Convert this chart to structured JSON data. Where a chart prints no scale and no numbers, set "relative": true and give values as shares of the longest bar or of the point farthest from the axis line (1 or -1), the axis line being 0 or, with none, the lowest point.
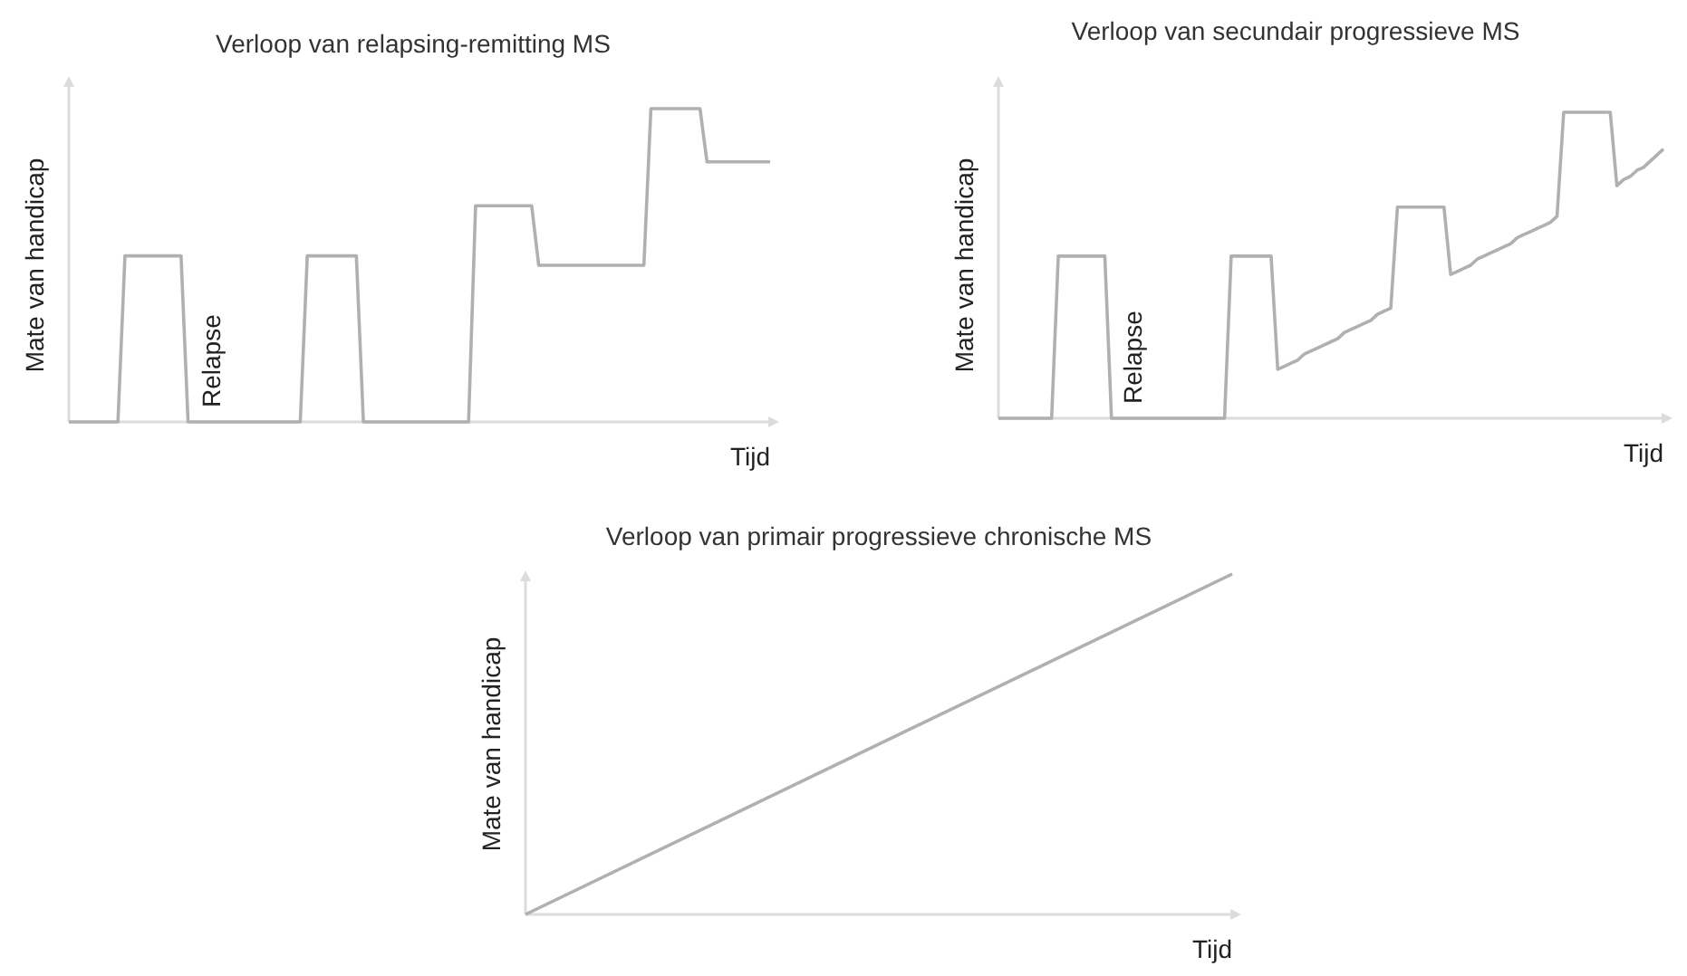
{
  "chart_data": [
    {
      "type": "line",
      "title": "Verloop van relapsing-remitting MS",
      "xlabel": "Tijd",
      "ylabel": "Mate van handicap",
      "relative": true,
      "color": "#b0b0b0",
      "annotations": [
        "Relapse"
      ],
      "categories": [
        null,
        null,
        null,
        null,
        null,
        null,
        null,
        null,
        null,
        null,
        null,
        null,
        null,
        null,
        null,
        null,
        null,
        null,
        null,
        null,
        null,
        null,
        null,
        null,
        null,
        null,
        null,
        null,
        null,
        null,
        null,
        null,
        null,
        null,
        null,
        null,
        null,
        null,
        null,
        null,
        null,
        null,
        null,
        null,
        null,
        null,
        null,
        null,
        null,
        null,
        null,
        null,
        null,
        null,
        null,
        null,
        null,
        null,
        null,
        null,
        null,
        null,
        null,
        null,
        null,
        null,
        null,
        null,
        null,
        null,
        null,
        null,
        null,
        null,
        null,
        null,
        null,
        null,
        null,
        null,
        null,
        null,
        null,
        null,
        null,
        null,
        null,
        null,
        null,
        null,
        null,
        null,
        null,
        null,
        null,
        null,
        null,
        null,
        null,
        null,
        null
      ],
      "values": [
        0,
        0,
        0,
        0,
        0,
        0,
        0,
        0,
        0.53,
        0.53,
        0.53,
        0.53,
        0.53,
        0.53,
        0.53,
        0.53,
        0.53,
        0,
        0,
        0,
        0,
        0,
        0,
        0,
        0,
        0,
        0,
        0,
        0,
        0,
        0,
        0,
        0,
        0,
        0.53,
        0.53,
        0.53,
        0.53,
        0.53,
        0.53,
        0.53,
        0.53,
        0,
        0,
        0,
        0,
        0,
        0,
        0,
        0,
        0,
        0,
        0,
        0,
        0,
        0,
        0,
        0,
        0.69,
        0.69,
        0.69,
        0.69,
        0.69,
        0.69,
        0.69,
        0.69,
        0.69,
        0.5,
        0.5,
        0.5,
        0.5,
        0.5,
        0.5,
        0.5,
        0.5,
        0.5,
        0.5,
        0.5,
        0.5,
        0.5,
        0.5,
        0.5,
        0.5,
        1,
        1,
        1,
        1,
        1,
        1,
        1,
        1,
        0.83,
        0.83,
        0.83,
        0.83,
        0.83,
        0.83,
        0.83,
        0.83,
        0.83,
        0.83
      ]
    },
    {
      "type": "line",
      "title": "Verloop van secundair progressieve MS",
      "xlabel": "Tijd",
      "ylabel": "Mate van handicap",
      "relative": true,
      "color": "#b0b0b0",
      "annotations": [
        "Relapse"
      ],
      "categories": [
        null,
        null,
        null,
        null,
        null,
        null,
        null,
        null,
        null,
        null,
        null,
        null,
        null,
        null,
        null,
        null,
        null,
        null,
        null,
        null,
        null,
        null,
        null,
        null,
        null,
        null,
        null,
        null,
        null,
        null,
        null,
        null,
        null,
        null,
        null,
        null,
        null,
        null,
        null,
        null,
        null,
        null,
        null,
        null,
        null,
        null,
        null,
        null,
        null,
        null,
        null,
        null,
        null,
        null,
        null,
        null,
        null,
        null,
        null,
        null,
        null,
        null,
        null,
        null,
        null,
        null,
        null,
        null,
        null,
        null,
        null,
        null,
        null,
        null,
        null,
        null,
        null,
        null,
        null,
        null,
        null,
        null,
        null,
        null,
        null,
        null,
        null,
        null,
        null,
        null,
        null,
        null,
        null,
        null,
        null,
        null,
        null,
        null,
        null,
        null,
        null
      ],
      "values": [
        0,
        0,
        0,
        0,
        0,
        0,
        0,
        0,
        0,
        0.53,
        0.53,
        0.53,
        0.53,
        0.53,
        0.53,
        0.53,
        0.53,
        0,
        0,
        0,
        0,
        0,
        0,
        0,
        0,
        0,
        0,
        0,
        0,
        0,
        0,
        0,
        0,
        0,
        0,
        0.53,
        0.53,
        0.53,
        0.53,
        0.53,
        0.53,
        0.53,
        0.16,
        0.17,
        0.18,
        0.19,
        0.21,
        0.22,
        0.23,
        0.24,
        0.25,
        0.26,
        0.28,
        0.29,
        0.3,
        0.31,
        0.32,
        0.34,
        0.35,
        0.36,
        0.69,
        0.69,
        0.69,
        0.69,
        0.69,
        0.69,
        0.69,
        0.69,
        0.47,
        0.48,
        0.49,
        0.5,
        0.52,
        0.53,
        0.54,
        0.55,
        0.56,
        0.57,
        0.59,
        0.6,
        0.61,
        0.62,
        0.63,
        0.64,
        0.66,
        1,
        1,
        1,
        1,
        1,
        1,
        1,
        1,
        0.76,
        0.78,
        0.79,
        0.81,
        0.82,
        0.84,
        0.86,
        0.88
      ]
    },
    {
      "type": "line",
      "title": "Verloop van primair progressieve chronische MS",
      "xlabel": "Tijd",
      "ylabel": "Mate van handicap",
      "relative": true,
      "color": "#b0b0b0",
      "categories": [
        null,
        null
      ],
      "values": [
        0,
        1
      ]
    }
  ]
}
